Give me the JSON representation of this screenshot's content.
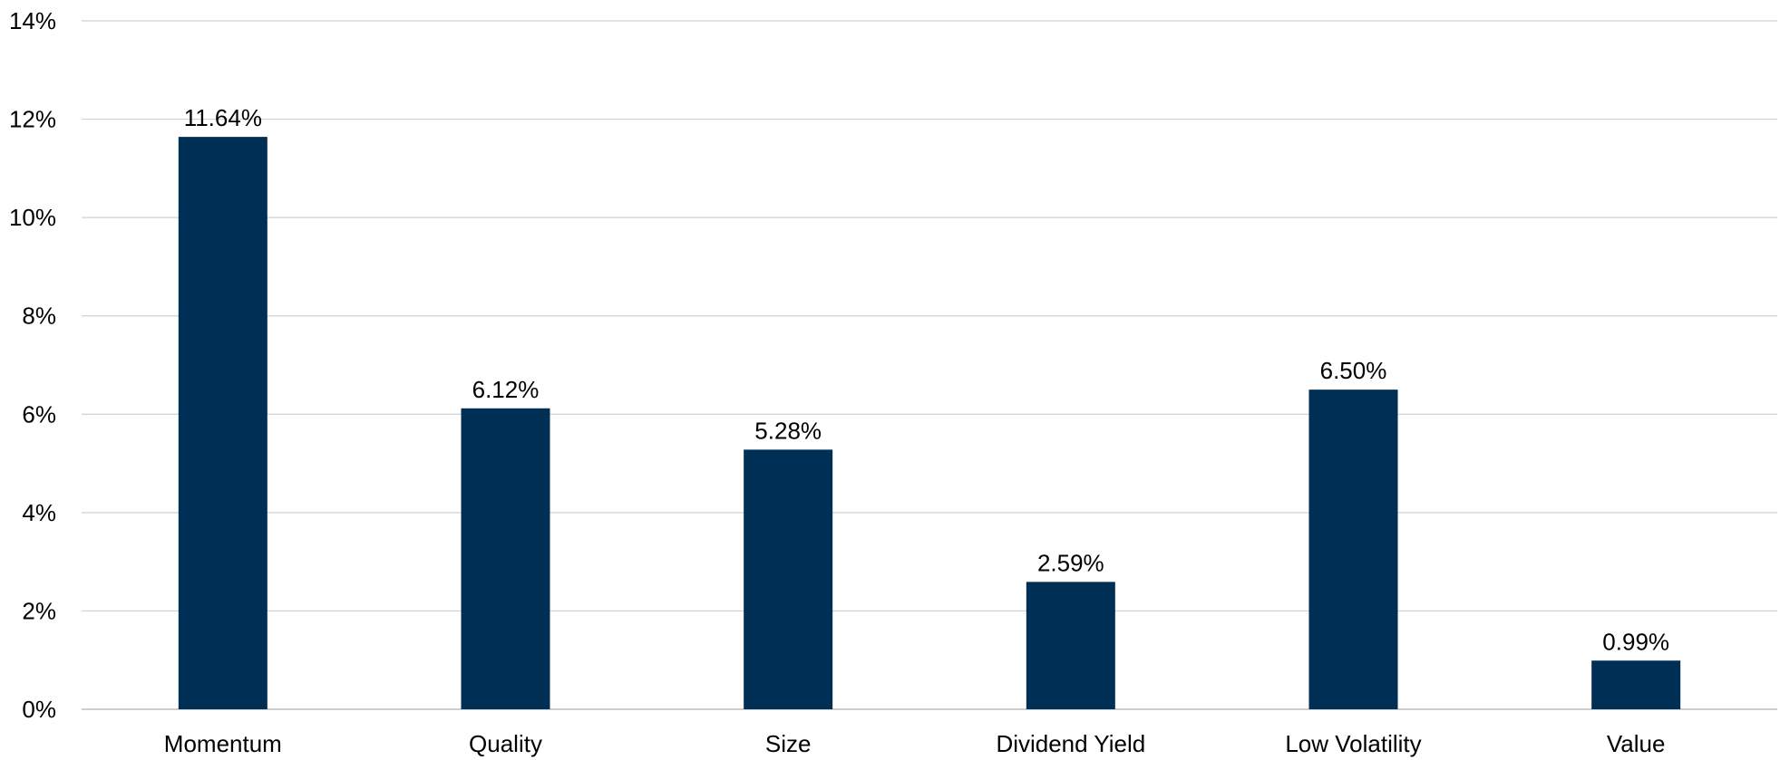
{
  "chart_data": {
    "type": "bar",
    "categories": [
      "Momentum",
      "Quality",
      "Size",
      "Dividend Yield",
      "Low Volatility",
      "Value"
    ],
    "values": [
      11.64,
      6.12,
      5.28,
      2.59,
      6.5,
      0.99
    ],
    "data_labels": [
      "11.64%",
      "6.12%",
      "5.28%",
      "2.59%",
      "6.50%",
      "0.99%"
    ],
    "y_ticks": [
      0,
      2,
      4,
      6,
      8,
      10,
      12,
      14
    ],
    "y_tick_labels": [
      "0%",
      "2%",
      "4%",
      "6%",
      "8%",
      "10%",
      "12%",
      "14%"
    ],
    "ylim": [
      0,
      14
    ],
    "grid": true,
    "legend": "none",
    "bar_color": "#002f56"
  }
}
